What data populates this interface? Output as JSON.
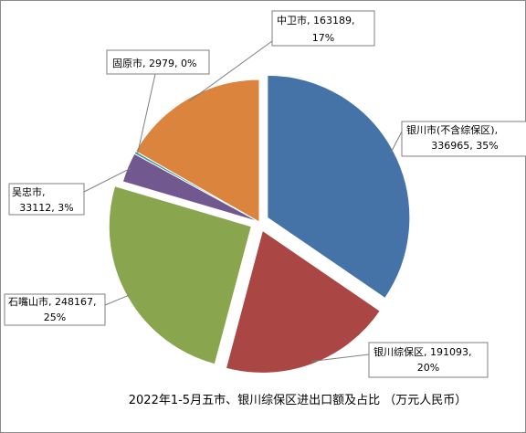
{
  "chart_data": {
    "type": "pie",
    "title": "2022年1-5月五市、银川综保区进出口额及占比 （万元人民币）",
    "slices": [
      {
        "category": "银川市(不含综保区)",
        "value": 336965,
        "percent": "35%",
        "color": "#4572a7",
        "label_line1": "银川市(不含综保区),",
        "label_line2": "336965, 35%",
        "exploded": true
      },
      {
        "category": "银川综保区",
        "value": 191093,
        "percent": "20%",
        "color": "#aa4643",
        "label_line1": "银川综保区, 191093,",
        "label_line2": "20%",
        "exploded": true
      },
      {
        "category": "石嘴山市",
        "value": 248167,
        "percent": "25%",
        "color": "#89a54e",
        "label_line1": "石嘴山市, 248167,",
        "label_line2": "25%",
        "exploded": true
      },
      {
        "category": "吴忠市",
        "value": 33112,
        "percent": "3%",
        "color": "#71588f",
        "label_line1": "吴忠市,",
        "label_line2": "33112, 3%",
        "exploded": false
      },
      {
        "category": "固原市",
        "value": 2979,
        "percent": "0%",
        "color": "#4198af",
        "label_line1": "固原市, 2979, 0%",
        "label_line2": "",
        "exploded": false
      },
      {
        "category": "中卫市",
        "value": 163189,
        "percent": "17%",
        "color": "#db843d",
        "label_line1": "中卫市, 163189,",
        "label_line2": "17%",
        "exploded": false
      }
    ]
  }
}
